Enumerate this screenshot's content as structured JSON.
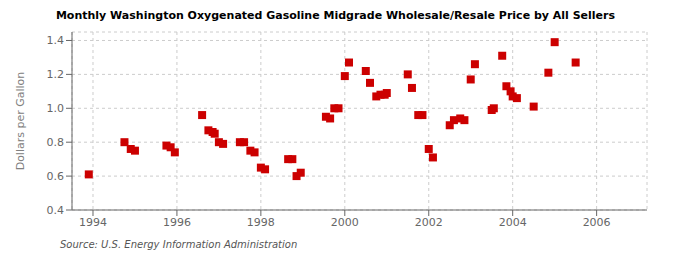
{
  "chart_data": {
    "type": "scatter",
    "title": "Monthly Washington Oxygenated Gasoline Midgrade Wholesale/Resale Price by All Sellers",
    "ylabel": "Dollars per Gallon",
    "source": "Source: U.S. Energy Information Administration",
    "color": "#cc0000",
    "marker": "square",
    "grid": true,
    "xlim": [
      1993.5,
      2007.2
    ],
    "ylim": [
      0.4,
      1.45
    ],
    "xticks": [
      1994,
      1996,
      1998,
      2000,
      2002,
      2004,
      2006
    ],
    "yticks": [
      0.4,
      0.6,
      0.8,
      {
        "value": 1.0,
        "label": "1.0"
      },
      1.2,
      1.4
    ],
    "x": [
      1993.9,
      1994.75,
      1994.9,
      1995.0,
      1995.75,
      1995.85,
      1995.95,
      1996.6,
      1996.75,
      1996.85,
      1996.9,
      1997.0,
      1997.1,
      1997.5,
      1997.6,
      1997.75,
      1997.85,
      1998.0,
      1998.1,
      1998.65,
      1998.75,
      1998.85,
      1998.95,
      1999.55,
      1999.65,
      1999.75,
      1999.85,
      2000.0,
      2000.1,
      2000.5,
      2000.6,
      2000.75,
      2000.85,
      2000.95,
      2001.0,
      2001.5,
      2001.6,
      2001.75,
      2001.85,
      2002.0,
      2002.1,
      2002.5,
      2002.6,
      2002.75,
      2002.85,
      2003.0,
      2003.1,
      2003.5,
      2003.55,
      2003.75,
      2003.85,
      2003.95,
      2004.0,
      2004.1,
      2004.5,
      2004.85,
      2005.0,
      2005.5
    ],
    "values": [
      0.61,
      0.8,
      0.76,
      0.75,
      0.78,
      0.77,
      0.74,
      0.96,
      0.87,
      0.86,
      0.85,
      0.8,
      0.79,
      0.8,
      0.8,
      0.75,
      0.74,
      0.65,
      0.64,
      0.7,
      0.7,
      0.6,
      0.62,
      0.95,
      0.94,
      1.0,
      1.0,
      1.19,
      1.27,
      1.22,
      1.15,
      1.07,
      1.08,
      1.08,
      1.09,
      1.2,
      1.12,
      0.96,
      0.96,
      0.76,
      0.71,
      0.9,
      0.93,
      0.94,
      0.93,
      1.17,
      1.26,
      0.99,
      1.0,
      1.31,
      1.13,
      1.1,
      1.07,
      1.06,
      1.01,
      1.21,
      1.39,
      1.27
    ]
  }
}
